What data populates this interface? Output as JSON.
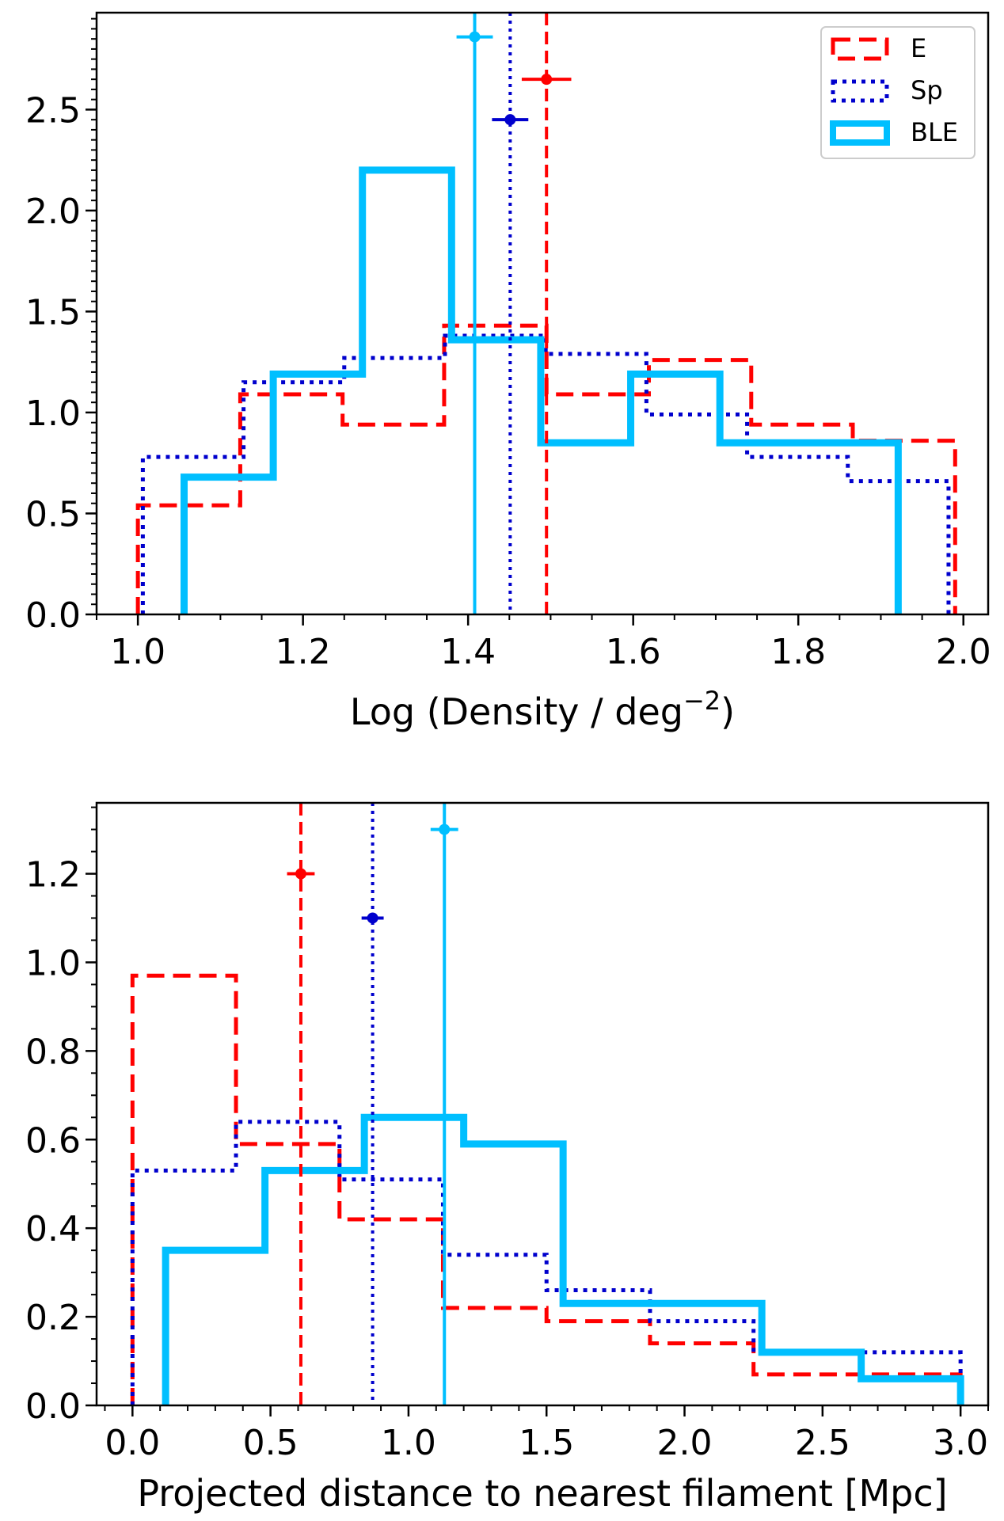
{
  "chart_data": [
    {
      "type": "histogram",
      "xlabel": "Log (Density / deg",
      "xlabel_sup": "−2",
      "xlabel_close": ")",
      "ylabel": "",
      "xlim": [
        0.95,
        2.03
      ],
      "ylim": [
        0,
        2.98
      ],
      "xticks": [
        1.0,
        1.2,
        1.4,
        1.6,
        1.8,
        2.0
      ],
      "xtick_labels": [
        "1.0",
        "1.2",
        "1.4",
        "1.6",
        "1.8",
        "2.0"
      ],
      "yticks": [
        0.0,
        0.5,
        1.0,
        1.5,
        2.0,
        2.5
      ],
      "ytick_labels": [
        "0.0",
        "0.5",
        "1.0",
        "1.5",
        "2.0",
        "2.5"
      ],
      "legend": {
        "position": "top-right",
        "entries": [
          "E",
          "Sp",
          "BLE"
        ]
      },
      "series": [
        {
          "name": "E",
          "color": "#ff0000",
          "style": "dashed",
          "edges": [
            1.0,
            1.124,
            1.248,
            1.371,
            1.495,
            1.619,
            1.743,
            1.866,
            1.99
          ],
          "values": [
            0.54,
            1.09,
            0.94,
            1.43,
            1.09,
            1.26,
            0.94,
            0.86
          ],
          "marker": {
            "x": 1.495,
            "xerr": 0.03,
            "y": 2.65
          }
        },
        {
          "name": "Sp",
          "color": "#0000cd",
          "style": "dotted",
          "edges": [
            1.006,
            1.128,
            1.25,
            1.372,
            1.494,
            1.616,
            1.738,
            1.86,
            1.982
          ],
          "values": [
            0.78,
            1.15,
            1.27,
            1.38,
            1.29,
            0.99,
            0.78,
            0.66
          ],
          "marker": {
            "x": 1.451,
            "xerr": 0.022,
            "y": 2.45
          }
        },
        {
          "name": "BLE",
          "color": "#00bfff",
          "style": "solid",
          "edges": [
            1.056,
            1.164,
            1.272,
            1.38,
            1.488,
            1.597,
            1.705,
            1.813,
            1.921
          ],
          "values": [
            0.68,
            1.19,
            2.2,
            1.36,
            0.85,
            1.19,
            0.85,
            0.85
          ],
          "marker": {
            "x": 1.408,
            "xerr": 0.022,
            "y": 2.86
          }
        }
      ]
    },
    {
      "type": "histogram",
      "xlabel": "Projected distance to nearest filament [Mpc]",
      "ylabel": "",
      "xlim": [
        -0.13,
        3.1
      ],
      "ylim": [
        0,
        1.36
      ],
      "xticks": [
        0.0,
        0.5,
        1.0,
        1.5,
        2.0,
        2.5,
        3.0
      ],
      "xtick_labels": [
        "0.0",
        "0.5",
        "1.0",
        "1.5",
        "2.0",
        "2.5",
        "3.0"
      ],
      "yticks": [
        0.0,
        0.2,
        0.4,
        0.6,
        0.8,
        1.0,
        1.2
      ],
      "ytick_labels": [
        "0.0",
        "0.2",
        "0.4",
        "0.6",
        "0.8",
        "1.0",
        "1.2"
      ],
      "series": [
        {
          "name": "E",
          "color": "#ff0000",
          "style": "dashed",
          "edges": [
            0.0,
            0.375,
            0.75,
            1.125,
            1.5,
            1.875,
            2.25,
            2.625,
            3.0
          ],
          "values": [
            0.97,
            0.59,
            0.42,
            0.22,
            0.19,
            0.14,
            0.07,
            0.07
          ],
          "marker": {
            "x": 0.61,
            "xerr": 0.05,
            "y": 1.2
          }
        },
        {
          "name": "Sp",
          "color": "#0000cd",
          "style": "dotted",
          "edges": [
            0.0,
            0.375,
            0.75,
            1.125,
            1.5,
            1.875,
            2.25,
            2.625,
            3.0
          ],
          "values": [
            0.53,
            0.64,
            0.51,
            0.34,
            0.26,
            0.19,
            0.12,
            0.12
          ],
          "marker": {
            "x": 0.87,
            "xerr": 0.04,
            "y": 1.1
          }
        },
        {
          "name": "BLE",
          "color": "#00bfff",
          "style": "solid",
          "edges": [
            0.12,
            0.48,
            0.84,
            1.2,
            1.56,
            1.92,
            2.28,
            2.64,
            3.0
          ],
          "values": [
            0.35,
            0.53,
            0.65,
            0.59,
            0.23,
            0.23,
            0.12,
            0.06
          ],
          "marker": {
            "x": 1.13,
            "xerr": 0.05,
            "y": 1.3
          }
        }
      ]
    }
  ]
}
